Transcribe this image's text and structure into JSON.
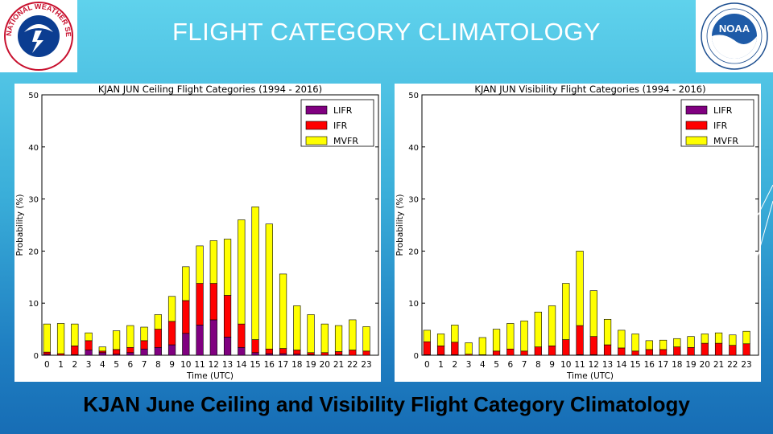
{
  "slide": {
    "title": "FLIGHT CATEGORY CLIMATOLOGY",
    "caption": "KJAN June Ceiling and Visibility Flight Category Climatology"
  },
  "logos": {
    "left": {
      "icon": "nws-logo-icon",
      "text": "NATIONAL WEATHER SERVICE"
    },
    "right": {
      "icon": "noaa-logo-icon",
      "text": "NOAA"
    }
  },
  "colors": {
    "LIFR": "#800080",
    "IFR": "#ff0000",
    "MVFR": "#ffff00"
  },
  "chart_data": [
    {
      "type": "bar",
      "stacked": true,
      "title": "KJAN JUN Ceiling Flight Categories (1994 - 2016)",
      "xlabel": "Time (UTC)",
      "ylabel": "Probability (%)",
      "ylim": [
        0,
        50
      ],
      "yticks": [
        0,
        10,
        20,
        30,
        40,
        50
      ],
      "grid": false,
      "legend_position": "top-right",
      "categories": [
        "0",
        "1",
        "2",
        "3",
        "4",
        "5",
        "6",
        "7",
        "8",
        "9",
        "10",
        "11",
        "12",
        "13",
        "14",
        "15",
        "16",
        "17",
        "18",
        "19",
        "20",
        "21",
        "22",
        "23"
      ],
      "series": [
        {
          "name": "LIFR",
          "values": [
            0.2,
            0,
            0.1,
            1,
            0.5,
            0.2,
            0.5,
            1.2,
            1.5,
            2,
            4.2,
            5.8,
            6.8,
            3.5,
            1.5,
            0.5,
            0.3,
            0.3,
            0.2,
            0.1,
            0,
            0.1,
            0,
            0
          ]
        },
        {
          "name": "IFR",
          "values": [
            0.4,
            0.3,
            1.7,
            1.8,
            0.3,
            0.9,
            1,
            1.6,
            3.5,
            4.5,
            6.3,
            8,
            7,
            8,
            4.5,
            2.5,
            0.9,
            1,
            0.8,
            0.4,
            0.5,
            0.6,
            1,
            0.8
          ]
        },
        {
          "name": "MVFR",
          "values": [
            5.4,
            5.8,
            4.2,
            1.5,
            0.8,
            3.6,
            4.2,
            2.6,
            2.8,
            4.8,
            6.5,
            7.2,
            8.2,
            10.8,
            20,
            25.5,
            24,
            14.3,
            8.5,
            7.3,
            5.5,
            5,
            5.8,
            4.7
          ]
        }
      ]
    },
    {
      "type": "bar",
      "stacked": true,
      "title": "KJAN JUN Visibility Flight Categories (1994 - 2016)",
      "xlabel": "Time (UTC)",
      "ylabel": "Probability (%)",
      "ylim": [
        0,
        50
      ],
      "yticks": [
        0,
        10,
        20,
        30,
        40,
        50
      ],
      "grid": false,
      "legend_position": "top-right",
      "categories": [
        "0",
        "1",
        "2",
        "3",
        "4",
        "5",
        "6",
        "7",
        "8",
        "9",
        "10",
        "11",
        "12",
        "13",
        "14",
        "15",
        "16",
        "17",
        "18",
        "19",
        "20",
        "21",
        "22",
        "23"
      ],
      "series": [
        {
          "name": "LIFR",
          "values": [
            0.1,
            0.1,
            0.1,
            0,
            0,
            0,
            0,
            0,
            0,
            0,
            0,
            0.1,
            0.1,
            0,
            0,
            0,
            0,
            0,
            0,
            0,
            0,
            0,
            0,
            0
          ]
        },
        {
          "name": "IFR",
          "values": [
            2.5,
            1.7,
            2.4,
            0.2,
            0.1,
            0.8,
            1.2,
            0.8,
            1.6,
            1.8,
            3,
            5.6,
            3.5,
            2,
            1.4,
            0.8,
            1.1,
            1.1,
            1.6,
            1.5,
            2.3,
            2.3,
            1.9,
            2.2
          ]
        },
        {
          "name": "MVFR",
          "values": [
            2.2,
            2.3,
            3.3,
            2.2,
            3.3,
            4.2,
            4.9,
            5.8,
            6.7,
            7.7,
            10.8,
            14.3,
            8.8,
            4.9,
            3.4,
            3.3,
            1.7,
            1.8,
            1.6,
            2.1,
            1.8,
            2,
            2,
            2.4
          ]
        }
      ]
    }
  ]
}
